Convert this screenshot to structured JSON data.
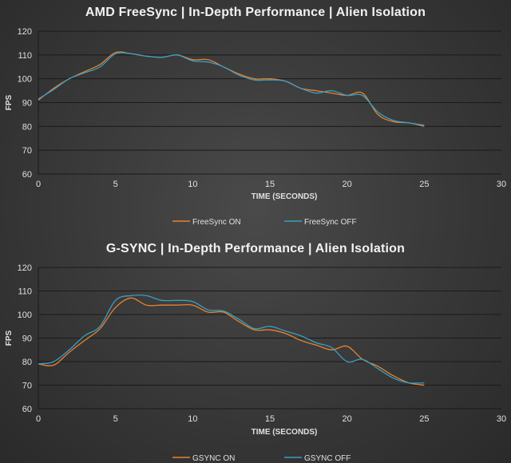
{
  "chart_data": [
    {
      "type": "line",
      "title": "AMD FreeSync | In-Depth Performance | Alien Isolation",
      "xlabel": "TIME (SECONDS)",
      "ylabel": "FPS",
      "xlim": [
        0,
        30
      ],
      "ylim": [
        60,
        120
      ],
      "xticks": [
        0,
        5,
        10,
        15,
        20,
        25,
        30
      ],
      "yticks": [
        60,
        70,
        80,
        90,
        100,
        110,
        120
      ],
      "grid": true,
      "legend": "bottom",
      "series": [
        {
          "name": "FreeSync ON",
          "color": "#e8822e",
          "x": [
            0,
            1,
            2,
            3,
            4,
            5,
            6,
            7,
            8,
            9,
            10,
            11,
            12,
            13,
            14,
            15,
            16,
            17,
            18,
            19,
            20,
            21,
            22,
            23,
            24,
            25
          ],
          "y": [
            91,
            96,
            100,
            103,
            106,
            111,
            110.5,
            109.5,
            109,
            110,
            108,
            108,
            105,
            102,
            100,
            100,
            99,
            96,
            95,
            94,
            93,
            94,
            85,
            82,
            81.5,
            80
          ]
        },
        {
          "name": "FreeSync OFF",
          "color": "#3a9fc4",
          "x": [
            0,
            1,
            2,
            3,
            4,
            5,
            6,
            7,
            8,
            9,
            10,
            11,
            12,
            13,
            14,
            15,
            16,
            17,
            18,
            19,
            20,
            21,
            22,
            23,
            24,
            25
          ],
          "y": [
            91.5,
            95.5,
            100,
            102.5,
            105,
            110.5,
            110.5,
            109.5,
            109,
            110,
            107.5,
            107,
            105,
            101.5,
            99.5,
            99.5,
            99,
            96,
            94,
            95,
            93,
            93,
            86,
            82.5,
            81.5,
            80.5
          ]
        }
      ]
    },
    {
      "type": "line",
      "title": "G-SYNC | In-Depth Performance | Alien Isolation",
      "xlabel": "TIME (SECONDS)",
      "ylabel": "FPS",
      "xlim": [
        0,
        30
      ],
      "ylim": [
        60,
        120
      ],
      "xticks": [
        0,
        5,
        10,
        15,
        20,
        25,
        30
      ],
      "yticks": [
        60,
        70,
        80,
        90,
        100,
        110,
        120
      ],
      "grid": true,
      "legend": "bottom",
      "series": [
        {
          "name": "GSYNC ON",
          "color": "#e8822e",
          "x": [
            0,
            1,
            2,
            3,
            4,
            5,
            6,
            7,
            8,
            9,
            10,
            11,
            12,
            13,
            14,
            15,
            16,
            17,
            18,
            19,
            20,
            21,
            22,
            23,
            24,
            25
          ],
          "y": [
            79,
            78.5,
            84,
            89,
            94,
            103,
            107,
            104,
            104,
            104,
            104,
            101,
            101,
            97,
            93.5,
            93.5,
            92,
            89,
            87,
            85,
            86.5,
            81,
            78,
            74,
            71,
            70
          ]
        },
        {
          "name": "GSYNC OFF",
          "color": "#3a9fc4",
          "x": [
            0,
            1,
            2,
            3,
            4,
            5,
            6,
            7,
            8,
            9,
            10,
            11,
            12,
            13,
            14,
            15,
            16,
            17,
            18,
            19,
            20,
            21,
            22,
            23,
            24,
            25
          ],
          "y": [
            79,
            80,
            85,
            91,
            95,
            106,
            108,
            108,
            106,
            106,
            105.5,
            102,
            101.5,
            98,
            94,
            95,
            93,
            91,
            88,
            86,
            80,
            81,
            77,
            73,
            71,
            71
          ]
        }
      ]
    }
  ]
}
